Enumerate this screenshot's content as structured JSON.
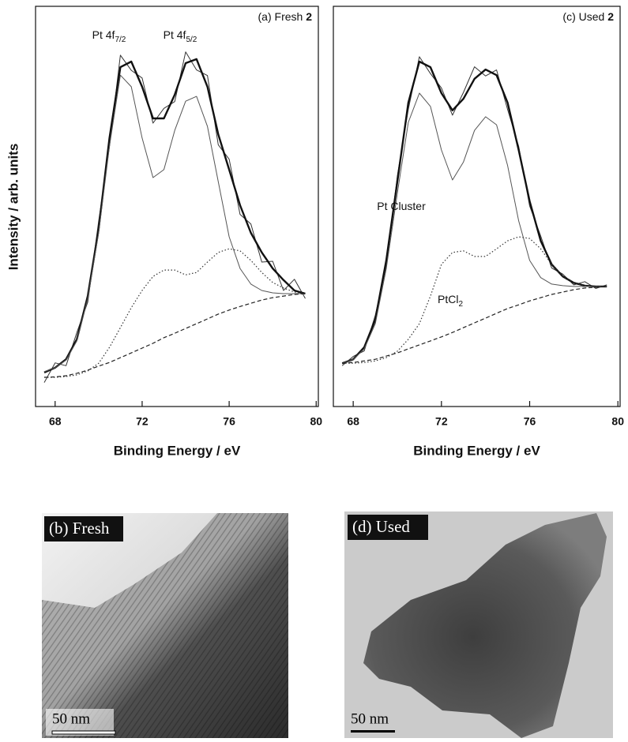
{
  "chart_data": [
    {
      "type": "line",
      "panel_label": {
        "text": "(a) Fresh ",
        "bold": "2"
      },
      "x_label": "Binding Energy / eV",
      "y_label": "Intensity / arb. units",
      "x": [
        67.5,
        68,
        68.5,
        69,
        69.5,
        70,
        70.5,
        71,
        71.5,
        72,
        72.5,
        73,
        73.5,
        74,
        74.5,
        75,
        75.5,
        76,
        76.5,
        77,
        77.5,
        78,
        78.5,
        79,
        79.5
      ],
      "xlim": [
        67.1,
        80.1
      ],
      "ylim": [
        0,
        100
      ],
      "xticks": [
        68,
        72,
        76,
        80
      ],
      "series": [
        {
          "color": "#333333",
          "line_style": "noisy",
          "values": [
            6.0,
            10.9,
            10.2,
            18.5,
            26.1,
            46.3,
            65.0,
            87.8,
            84.0,
            82.1,
            70.8,
            74.5,
            76.2,
            88.6,
            84.1,
            82.7,
            65.4,
            61.8,
            48.0,
            45.6,
            36.1,
            36.3,
            29.0,
            31.8,
            27.0
          ]
        },
        {
          "color": "#111111",
          "line_style": "bold",
          "values": [
            8.5,
            9.7,
            11.8,
            16.8,
            27.6,
            44.4,
            67.1,
            84.8,
            86.2,
            79.9,
            72.0,
            72.0,
            77.9,
            85.8,
            86.8,
            79.9,
            68.0,
            59.2,
            50.3,
            43.4,
            38.5,
            34.5,
            31.6,
            29.0,
            28.2
          ]
        },
        {
          "color": "#555555",
          "line_style": "solid",
          "values": [
            8.7,
            9.7,
            11.6,
            16.4,
            27.0,
            43.4,
            65.1,
            82.8,
            79.9,
            67.1,
            57.2,
            59.2,
            69.0,
            76.3,
            77.5,
            70.0,
            56.2,
            42.4,
            34.5,
            30.6,
            29.0,
            28.4,
            28.2,
            28.2,
            28.2
          ]
        },
        {
          "color": "#333333",
          "line_style": "dotted",
          "values": [
            7.3,
            7.3,
            7.5,
            7.9,
            8.9,
            10.8,
            14.8,
            19.7,
            24.7,
            29.0,
            32.5,
            34.1,
            34.1,
            32.9,
            33.5,
            36.1,
            38.5,
            39.4,
            38.9,
            36.5,
            33.5,
            31.0,
            29.6,
            28.6,
            28.2
          ]
        },
        {
          "color": "#222222",
          "line_style": "dashed",
          "values": [
            7.3,
            7.4,
            7.7,
            8.3,
            9.1,
            10.1,
            11.0,
            12.2,
            13.4,
            14.6,
            15.8,
            17.2,
            18.3,
            19.5,
            20.7,
            21.9,
            23.1,
            24.1,
            25.0,
            25.8,
            26.6,
            27.2,
            27.6,
            28.0,
            28.2
          ]
        }
      ],
      "annotations": [
        {
          "text": "Pt 4f",
          "sub": "7/2"
        },
        {
          "text": "Pt 4f",
          "sub": "5/2"
        }
      ]
    },
    {
      "type": "line",
      "panel_label": {
        "text": "(c) Used ",
        "bold": "2"
      },
      "x_label": "Binding Energy / eV",
      "x": [
        67.5,
        68,
        68.5,
        69,
        69.5,
        70,
        70.5,
        71,
        71.5,
        72,
        72.5,
        73,
        73.5,
        74,
        74.5,
        75,
        75.5,
        76,
        76.5,
        77,
        77.5,
        78,
        78.5,
        79,
        79.5
      ],
      "xlim": [
        67.1,
        80.1
      ],
      "ylim": [
        0,
        100
      ],
      "xticks": [
        68,
        72,
        76,
        80
      ],
      "series": [
        {
          "color": "#333333",
          "line_style": "noisy",
          "values": [
            10.2,
            12.5,
            13.9,
            22.8,
            35.2,
            57.6,
            74.3,
            87.4,
            83.2,
            79.6,
            72.8,
            78.5,
            84.9,
            82.6,
            84.1,
            74.2,
            65.0,
            50.1,
            42.6,
            34.6,
            33.1,
            30.4,
            31.2,
            29.5,
            30.4
          ]
        },
        {
          "color": "#111111",
          "line_style": "bold",
          "values": [
            10.8,
            11.8,
            14.8,
            21.7,
            36.5,
            56.2,
            75.9,
            86.2,
            84.8,
            78.3,
            74.0,
            76.9,
            81.9,
            84.2,
            82.8,
            75.9,
            64.1,
            51.3,
            41.4,
            35.5,
            32.5,
            30.9,
            30.2,
            30.0,
            30.0
          ]
        },
        {
          "color": "#555555",
          "line_style": "solid",
          "values": [
            10.8,
            11.8,
            14.4,
            20.7,
            34.5,
            53.3,
            71.0,
            78.3,
            75.0,
            64.1,
            56.6,
            61.1,
            69.0,
            72.4,
            70.4,
            60.2,
            46.4,
            36.5,
            32.2,
            30.6,
            30.2,
            30.0,
            30.0,
            30.0,
            30.0
          ]
        },
        {
          "color": "#333333",
          "line_style": "dotted",
          "values": [
            10.8,
            10.8,
            11.0,
            11.4,
            12.2,
            13.8,
            16.8,
            20.7,
            27.6,
            35.5,
            38.5,
            38.9,
            37.5,
            37.5,
            39.4,
            41.4,
            42.4,
            42.0,
            39.4,
            35.5,
            32.5,
            30.9,
            30.2,
            30.0,
            30.0
          ]
        },
        {
          "color": "#222222",
          "line_style": "dashed",
          "values": [
            10.8,
            11.0,
            11.4,
            11.8,
            12.6,
            13.4,
            14.4,
            15.4,
            16.4,
            17.4,
            18.5,
            19.7,
            20.9,
            22.1,
            23.3,
            24.5,
            25.4,
            26.4,
            27.2,
            28.0,
            28.6,
            29.2,
            29.6,
            29.8,
            30.0
          ]
        }
      ],
      "annotations": [
        {
          "text": "Pt Cluster"
        },
        {
          "text": "PtCl",
          "sub": "2"
        }
      ]
    }
  ],
  "images": [
    {
      "label": "(b) Fresh",
      "scale_bar": "50 nm"
    },
    {
      "label": "(d) Used",
      "scale_bar": "50 nm"
    }
  ]
}
